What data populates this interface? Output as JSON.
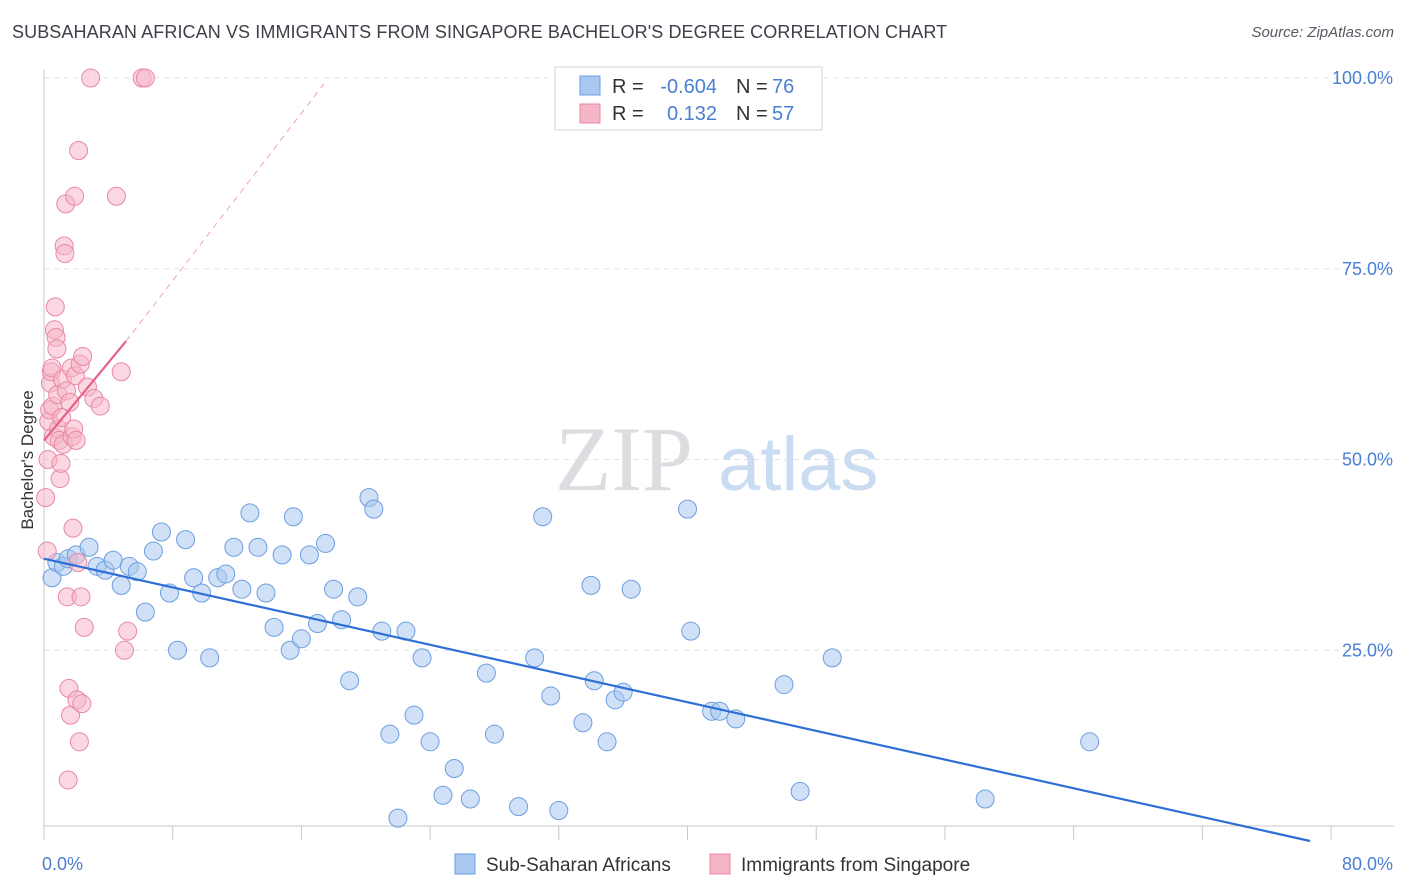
{
  "title": "SUBSAHARAN AFRICAN VS IMMIGRANTS FROM SINGAPORE BACHELOR'S DEGREE CORRELATION CHART",
  "source": "Source: ZipAtlas.com",
  "watermark": {
    "zip": "ZIP",
    "atlas": "atlas"
  },
  "legend": {
    "rows": [
      {
        "r_label": "R =",
        "r_value": "-0.604",
        "n_label": "N =",
        "n_value": "76",
        "color": "#a9c8f0"
      },
      {
        "r_label": "R =",
        "r_value": "0.132",
        "n_label": "N =",
        "n_value": "57",
        "color": "#f5b6c8"
      }
    ]
  },
  "chart_data": {
    "type": "scatter",
    "ylabel": "Bachelor's Degree",
    "xlabel": "",
    "xlim": [
      0,
      80
    ],
    "ylim": [
      0,
      100
    ],
    "x_tick_labels": [
      {
        "value": 0,
        "label": "0.0%"
      },
      {
        "value": 80,
        "label": "80.0%"
      }
    ],
    "y_tick_labels": [
      {
        "value": 25,
        "label": "25.0%"
      },
      {
        "value": 50,
        "label": "50.0%"
      },
      {
        "value": 75,
        "label": "75.0%"
      },
      {
        "value": 100,
        "label": "100.0%"
      }
    ],
    "grid": "horizontal dashed",
    "legend_position": "bottom-center",
    "series": [
      {
        "name": "Sub-Saharan Africans",
        "color": "#a9c8f0",
        "stroke": "#6c9ee0",
        "trend_color": "#2e6fd6",
        "trend": {
          "x": [
            0,
            78.7
          ],
          "y": [
            37.0,
            0.0
          ]
        },
        "points": [
          [
            0.5,
            34.5
          ],
          [
            0.8,
            36.5
          ],
          [
            1.2,
            36
          ],
          [
            1.5,
            37
          ],
          [
            2,
            37.5
          ],
          [
            2.8,
            38.5
          ],
          [
            3.3,
            36
          ],
          [
            3.8,
            35.5
          ],
          [
            4.3,
            36.8
          ],
          [
            4.8,
            33.5
          ],
          [
            5.3,
            36
          ],
          [
            5.8,
            35.3
          ],
          [
            6.3,
            30
          ],
          [
            6.8,
            38
          ],
          [
            7.3,
            40.5
          ],
          [
            7.8,
            32.5
          ],
          [
            8.3,
            25
          ],
          [
            8.8,
            39.5
          ],
          [
            9.3,
            34.5
          ],
          [
            9.8,
            32.5
          ],
          [
            10.3,
            24
          ],
          [
            10.8,
            34.5
          ],
          [
            11.3,
            35
          ],
          [
            11.8,
            38.5
          ],
          [
            12.3,
            33
          ],
          [
            12.8,
            43
          ],
          [
            13.3,
            38.5
          ],
          [
            13.8,
            32.5
          ],
          [
            14.3,
            28
          ],
          [
            14.8,
            37.5
          ],
          [
            15.3,
            25
          ],
          [
            15.5,
            42.5
          ],
          [
            16,
            26.5
          ],
          [
            16.5,
            37.5
          ],
          [
            17,
            28.5
          ],
          [
            17.5,
            39
          ],
          [
            18,
            33
          ],
          [
            18.5,
            29
          ],
          [
            19,
            21
          ],
          [
            19.5,
            32
          ],
          [
            20.2,
            45
          ],
          [
            20.5,
            43.5
          ],
          [
            21,
            27.5
          ],
          [
            21.5,
            14
          ],
          [
            22,
            3
          ],
          [
            22.5,
            27.5
          ],
          [
            23,
            16.5
          ],
          [
            23.5,
            24
          ],
          [
            24,
            13
          ],
          [
            24.8,
            6
          ],
          [
            25.5,
            9.5
          ],
          [
            26.5,
            5.5
          ],
          [
            27.5,
            22
          ],
          [
            28,
            14
          ],
          [
            29.5,
            4.5
          ],
          [
            30.5,
            24
          ],
          [
            31,
            42.5
          ],
          [
            31.5,
            19
          ],
          [
            32,
            4
          ],
          [
            33.5,
            15.5
          ],
          [
            34,
            33.5
          ],
          [
            34.2,
            21
          ],
          [
            35,
            13
          ],
          [
            35.5,
            18.5
          ],
          [
            36,
            19.5
          ],
          [
            36.5,
            33
          ],
          [
            40.2,
            27.5
          ],
          [
            40,
            43.5
          ],
          [
            41.5,
            17
          ],
          [
            42,
            17
          ],
          [
            43,
            16
          ],
          [
            46,
            20.5
          ],
          [
            47,
            6.5
          ],
          [
            49,
            24
          ],
          [
            58.5,
            5.5
          ],
          [
            65,
            13
          ]
        ]
      },
      {
        "name": "Immigrants from Singapore",
        "color": "#f5b6c8",
        "stroke": "#e888a6",
        "trend_color": "#e8608a",
        "trend": {
          "x": [
            0,
            5.1
          ],
          "y": [
            52.5,
            65.5
          ]
        },
        "trend_dashed": {
          "x": [
            5.1,
            17.5
          ],
          "y": [
            65.5,
            99.5
          ]
        },
        "points": [
          [
            0.1,
            45
          ],
          [
            0.2,
            38
          ],
          [
            0.25,
            50
          ],
          [
            0.3,
            55
          ],
          [
            0.35,
            56.5
          ],
          [
            0.4,
            60
          ],
          [
            0.45,
            61.5
          ],
          [
            0.5,
            62
          ],
          [
            0.55,
            57
          ],
          [
            0.6,
            53
          ],
          [
            0.65,
            67
          ],
          [
            0.7,
            70
          ],
          [
            0.75,
            66
          ],
          [
            0.8,
            64.5
          ],
          [
            0.85,
            58.5
          ],
          [
            0.9,
            54
          ],
          [
            0.95,
            52.5
          ],
          [
            1,
            47.5
          ],
          [
            1.05,
            49.5
          ],
          [
            1.1,
            55.5
          ],
          [
            1.15,
            60.5
          ],
          [
            1.2,
            52
          ],
          [
            1.25,
            78
          ],
          [
            1.3,
            77
          ],
          [
            1.35,
            83.5
          ],
          [
            1.4,
            59
          ],
          [
            1.45,
            32
          ],
          [
            1.5,
            8
          ],
          [
            1.55,
            20
          ],
          [
            1.6,
            57.5
          ],
          [
            1.65,
            16.5
          ],
          [
            1.7,
            62
          ],
          [
            1.75,
            53
          ],
          [
            1.8,
            41
          ],
          [
            1.85,
            54
          ],
          [
            1.9,
            84.5
          ],
          [
            1.95,
            61
          ],
          [
            2,
            52.5
          ],
          [
            2.05,
            18.5
          ],
          [
            2.1,
            36.5
          ],
          [
            2.15,
            90.5
          ],
          [
            2.2,
            13
          ],
          [
            2.25,
            62.5
          ],
          [
            2.3,
            32
          ],
          [
            2.35,
            18
          ],
          [
            2.4,
            63.5
          ],
          [
            2.5,
            28
          ],
          [
            2.7,
            59.5
          ],
          [
            2.9,
            100
          ],
          [
            3.1,
            58
          ],
          [
            3.5,
            57
          ],
          [
            4.5,
            84.5
          ],
          [
            4.8,
            61.5
          ],
          [
            5,
            25
          ],
          [
            5.2,
            27.5
          ],
          [
            6.1,
            100
          ],
          [
            6.3,
            100
          ]
        ]
      }
    ]
  }
}
